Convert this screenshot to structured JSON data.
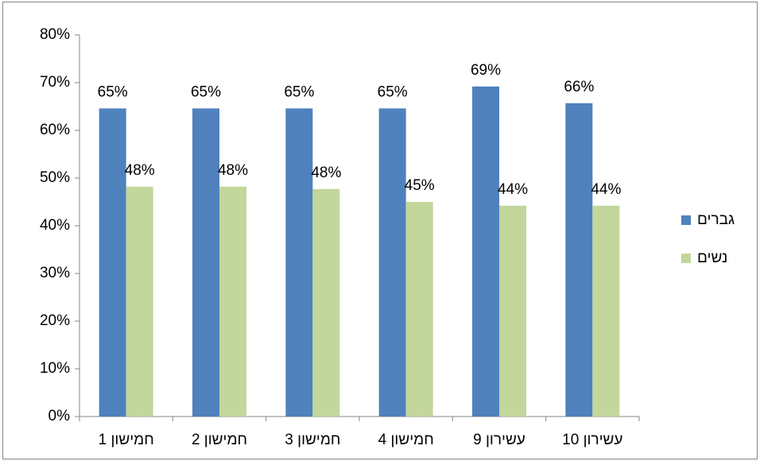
{
  "chart_data": {
    "type": "bar",
    "categories": [
      "חמישון 1",
      "חמישון 2",
      "חמישון 3",
      "חמישון 4",
      "עשירון 9",
      "עשירון 10"
    ],
    "series": [
      {
        "name": "גברים",
        "color": "#4f81bd",
        "values": [
          64.6,
          64.6,
          64.6,
          64.6,
          69.2,
          65.7
        ],
        "value_labels": [
          "65%",
          "65%",
          "65%",
          "65%",
          "69%",
          "66%"
        ]
      },
      {
        "name": "נשים",
        "color": "#c3d69b",
        "values": [
          48.2,
          48.2,
          47.7,
          45,
          44.2,
          44.2
        ],
        "value_labels": [
          "48%",
          "48%",
          "48%",
          "45%",
          "44%",
          "44%"
        ]
      }
    ],
    "ylim": [
      0,
      80
    ],
    "yticks": [
      {
        "value": 0,
        "label": "0%"
      },
      {
        "value": 10,
        "label": "10%"
      },
      {
        "value": 20,
        "label": "20%"
      },
      {
        "value": 30,
        "label": "30%"
      },
      {
        "value": 40,
        "label": "40%"
      },
      {
        "value": 50,
        "label": "50%"
      },
      {
        "value": 60,
        "label": "60%"
      },
      {
        "value": 70,
        "label": "70%"
      },
      {
        "value": 80,
        "label": "80%"
      }
    ],
    "grid": false,
    "legend": "right"
  }
}
